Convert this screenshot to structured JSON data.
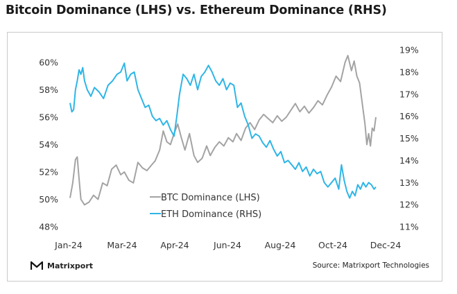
{
  "title": "Bitcoin Dominance (LHS) vs. Ethereum Dominance (RHS)",
  "footer": {
    "brand": "Matrixport",
    "source": "Source: Matrixport Technologies"
  },
  "colors": {
    "btc": "#a3a3a3",
    "eth": "#2eb5e6",
    "axis_text": "#333333"
  },
  "chart_data": {
    "type": "line",
    "title": "Bitcoin Dominance (LHS) vs. Ethereum Dominance (RHS)",
    "x_ticks": [
      "Jan-24",
      "Mar-24",
      "Apr-24",
      "Jun-24",
      "Aug-24",
      "Oct-24",
      "Dec-24"
    ],
    "x_tick_dates": [
      "2024-01-01",
      "2024-03-01",
      "2024-04-15",
      "2024-06-01",
      "2024-08-01",
      "2024-10-01",
      "2024-12-01"
    ],
    "left_axis": {
      "ticks": [
        "48%",
        "50%",
        "52%",
        "54%",
        "56%",
        "58%",
        "60%"
      ],
      "ylim": [
        48,
        61.5
      ]
    },
    "right_axis": {
      "ticks": [
        "11%",
        "12%",
        "13%",
        "14%",
        "15%",
        "16%",
        "17%",
        "18%",
        "19%"
      ],
      "ylim": [
        11,
        19
      ]
    },
    "legend": {
      "placement": "lower-center",
      "entries": [
        "BTC Dominance (LHS)",
        "ETH Dominance (RHS)"
      ]
    },
    "series": [
      {
        "name": "BTC Dominance (LHS)",
        "axis": "left",
        "points": [
          [
            "2024-01-01",
            50.1
          ],
          [
            "2024-01-04",
            51.2
          ],
          [
            "2024-01-07",
            52.9
          ],
          [
            "2024-01-09",
            53.1
          ],
          [
            "2024-01-11",
            51.5
          ],
          [
            "2024-01-13",
            50.0
          ],
          [
            "2024-01-17",
            49.6
          ],
          [
            "2024-01-22",
            49.8
          ],
          [
            "2024-01-27",
            50.3
          ],
          [
            "2024-02-01",
            50.0
          ],
          [
            "2024-02-06",
            51.2
          ],
          [
            "2024-02-11",
            51.0
          ],
          [
            "2024-02-16",
            52.2
          ],
          [
            "2024-02-21",
            52.5
          ],
          [
            "2024-02-26",
            51.8
          ],
          [
            "2024-03-01",
            52.0
          ],
          [
            "2024-03-06",
            51.4
          ],
          [
            "2024-03-11",
            51.2
          ],
          [
            "2024-03-16",
            52.7
          ],
          [
            "2024-03-21",
            52.3
          ],
          [
            "2024-03-26",
            52.1
          ],
          [
            "2024-03-31",
            52.5
          ],
          [
            "2024-04-04",
            52.8
          ],
          [
            "2024-04-09",
            53.6
          ],
          [
            "2024-04-13",
            55.0
          ],
          [
            "2024-04-17",
            54.2
          ],
          [
            "2024-04-21",
            54.0
          ],
          [
            "2024-04-25",
            54.8
          ],
          [
            "2024-04-29",
            55.5
          ],
          [
            "2024-05-03",
            54.5
          ],
          [
            "2024-05-07",
            53.6
          ],
          [
            "2024-05-12",
            54.8
          ],
          [
            "2024-05-17",
            53.2
          ],
          [
            "2024-05-21",
            52.7
          ],
          [
            "2024-05-26",
            53.0
          ],
          [
            "2024-05-31",
            53.9
          ],
          [
            "2024-06-04",
            53.2
          ],
          [
            "2024-06-09",
            53.8
          ],
          [
            "2024-06-14",
            54.2
          ],
          [
            "2024-06-19",
            53.9
          ],
          [
            "2024-06-24",
            54.5
          ],
          [
            "2024-06-29",
            54.2
          ],
          [
            "2024-07-03",
            54.8
          ],
          [
            "2024-07-08",
            54.3
          ],
          [
            "2024-07-13",
            55.2
          ],
          [
            "2024-07-18",
            55.6
          ],
          [
            "2024-07-23",
            55.1
          ],
          [
            "2024-07-28",
            55.8
          ],
          [
            "2024-08-02",
            56.2
          ],
          [
            "2024-08-07",
            55.9
          ],
          [
            "2024-08-12",
            55.6
          ],
          [
            "2024-08-17",
            56.1
          ],
          [
            "2024-08-22",
            55.7
          ],
          [
            "2024-08-27",
            56.0
          ],
          [
            "2024-09-01",
            56.5
          ],
          [
            "2024-09-06",
            57.0
          ],
          [
            "2024-09-11",
            56.4
          ],
          [
            "2024-09-16",
            56.8
          ],
          [
            "2024-09-21",
            56.3
          ],
          [
            "2024-09-26",
            56.7
          ],
          [
            "2024-10-01",
            57.2
          ],
          [
            "2024-10-06",
            56.9
          ],
          [
            "2024-10-11",
            57.6
          ],
          [
            "2024-10-16",
            58.2
          ],
          [
            "2024-10-21",
            59.0
          ],
          [
            "2024-10-26",
            58.6
          ],
          [
            "2024-10-31",
            60.0
          ],
          [
            "2024-11-03",
            60.5
          ],
          [
            "2024-11-07",
            59.4
          ],
          [
            "2024-11-10",
            60.1
          ],
          [
            "2024-11-13",
            59.0
          ],
          [
            "2024-11-16",
            58.5
          ],
          [
            "2024-11-19",
            57.0
          ],
          [
            "2024-11-22",
            55.5
          ],
          [
            "2024-11-24",
            54.0
          ],
          [
            "2024-11-26",
            54.8
          ],
          [
            "2024-11-28",
            53.9
          ],
          [
            "2024-11-30",
            55.2
          ],
          [
            "2024-12-02",
            55.0
          ],
          [
            "2024-12-04",
            56.0
          ]
        ]
      },
      {
        "name": "ETH Dominance (RHS)",
        "axis": "right",
        "points": [
          [
            "2024-01-01",
            16.6
          ],
          [
            "2024-01-03",
            16.2
          ],
          [
            "2024-01-05",
            16.3
          ],
          [
            "2024-01-07",
            17.2
          ],
          [
            "2024-01-09",
            17.6
          ],
          [
            "2024-01-11",
            18.1
          ],
          [
            "2024-01-13",
            17.9
          ],
          [
            "2024-01-15",
            18.2
          ],
          [
            "2024-01-17",
            17.6
          ],
          [
            "2024-01-20",
            17.2
          ],
          [
            "2024-01-24",
            16.9
          ],
          [
            "2024-01-28",
            17.3
          ],
          [
            "2024-02-02",
            17.1
          ],
          [
            "2024-02-07",
            16.8
          ],
          [
            "2024-02-12",
            17.4
          ],
          [
            "2024-02-17",
            17.6
          ],
          [
            "2024-02-22",
            17.9
          ],
          [
            "2024-02-26",
            18.0
          ],
          [
            "2024-03-01",
            18.4
          ],
          [
            "2024-03-04",
            17.6
          ],
          [
            "2024-03-08",
            17.9
          ],
          [
            "2024-03-12",
            18.0
          ],
          [
            "2024-03-16",
            17.2
          ],
          [
            "2024-03-20",
            16.8
          ],
          [
            "2024-03-24",
            16.4
          ],
          [
            "2024-03-28",
            16.5
          ],
          [
            "2024-04-01",
            16.0
          ],
          [
            "2024-04-05",
            15.8
          ],
          [
            "2024-04-09",
            15.9
          ],
          [
            "2024-04-13",
            15.6
          ],
          [
            "2024-04-17",
            15.8
          ],
          [
            "2024-04-21",
            15.4
          ],
          [
            "2024-04-25",
            15.1
          ],
          [
            "2024-04-28",
            16.0
          ],
          [
            "2024-05-01",
            17.0
          ],
          [
            "2024-05-05",
            17.9
          ],
          [
            "2024-05-09",
            17.7
          ],
          [
            "2024-05-13",
            17.4
          ],
          [
            "2024-05-17",
            17.9
          ],
          [
            "2024-05-21",
            17.2
          ],
          [
            "2024-05-25",
            17.8
          ],
          [
            "2024-05-29",
            18.0
          ],
          [
            "2024-06-02",
            18.3
          ],
          [
            "2024-06-06",
            18.0
          ],
          [
            "2024-06-10",
            17.6
          ],
          [
            "2024-06-14",
            17.4
          ],
          [
            "2024-06-18",
            17.7
          ],
          [
            "2024-06-22",
            17.2
          ],
          [
            "2024-06-26",
            17.5
          ],
          [
            "2024-06-30",
            17.4
          ],
          [
            "2024-07-04",
            16.4
          ],
          [
            "2024-07-08",
            16.6
          ],
          [
            "2024-07-12",
            16.0
          ],
          [
            "2024-07-16",
            15.6
          ],
          [
            "2024-07-20",
            15.0
          ],
          [
            "2024-07-24",
            15.2
          ],
          [
            "2024-07-28",
            15.1
          ],
          [
            "2024-08-01",
            14.8
          ],
          [
            "2024-08-05",
            14.6
          ],
          [
            "2024-08-09",
            14.9
          ],
          [
            "2024-08-13",
            14.5
          ],
          [
            "2024-08-17",
            14.2
          ],
          [
            "2024-08-21",
            14.4
          ],
          [
            "2024-08-25",
            13.9
          ],
          [
            "2024-08-29",
            14.0
          ],
          [
            "2024-09-02",
            13.8
          ],
          [
            "2024-09-06",
            13.6
          ],
          [
            "2024-09-10",
            13.9
          ],
          [
            "2024-09-14",
            13.5
          ],
          [
            "2024-09-18",
            13.7
          ],
          [
            "2024-09-22",
            13.3
          ],
          [
            "2024-09-26",
            13.6
          ],
          [
            "2024-09-30",
            13.4
          ],
          [
            "2024-10-04",
            13.5
          ],
          [
            "2024-10-08",
            13.0
          ],
          [
            "2024-10-12",
            12.8
          ],
          [
            "2024-10-16",
            13.0
          ],
          [
            "2024-10-20",
            13.2
          ],
          [
            "2024-10-24",
            12.7
          ],
          [
            "2024-10-27",
            13.8
          ],
          [
            "2024-10-30",
            13.1
          ],
          [
            "2024-11-02",
            12.6
          ],
          [
            "2024-11-05",
            12.3
          ],
          [
            "2024-11-08",
            12.6
          ],
          [
            "2024-11-11",
            12.4
          ],
          [
            "2024-11-14",
            12.9
          ],
          [
            "2024-11-17",
            12.7
          ],
          [
            "2024-11-20",
            13.0
          ],
          [
            "2024-11-23",
            12.8
          ],
          [
            "2024-11-26",
            13.0
          ],
          [
            "2024-11-29",
            12.9
          ],
          [
            "2024-12-02",
            12.7
          ],
          [
            "2024-12-04",
            12.8
          ]
        ]
      }
    ]
  }
}
